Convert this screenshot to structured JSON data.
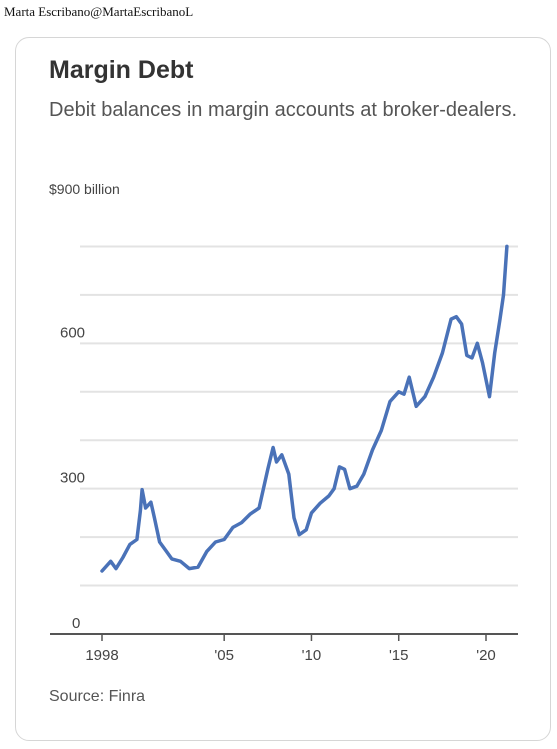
{
  "byline": "Marta Escribano@MartaEscribanoL",
  "chart_data": {
    "type": "line",
    "title": "Margin Debt",
    "subtitle": "Debit balances in margin accounts at broker-dealers.",
    "unit_label": "$900 billion",
    "source": "Source: Finra",
    "ylim": [
      0,
      900
    ],
    "xlim": [
      1998,
      2021.5
    ],
    "y_ticks": [
      {
        "value": 0,
        "label": "0"
      },
      {
        "value": 300,
        "label": "300"
      },
      {
        "value": 600,
        "label": "600"
      }
    ],
    "y_gridlines": [
      100,
      200,
      300,
      400,
      500,
      600,
      700,
      800
    ],
    "x_ticks": [
      {
        "value": 1998,
        "label": "1998"
      },
      {
        "value": 2005,
        "label": "'05"
      },
      {
        "value": 2010,
        "label": "'10"
      },
      {
        "value": 2015,
        "label": "'15"
      },
      {
        "value": 2020,
        "label": "'20"
      }
    ],
    "grid": true,
    "line_color": "#4a72b8",
    "series": [
      {
        "values": [
          {
            "x": 1998.0,
            "y": 130
          },
          {
            "x": 1998.5,
            "y": 150
          },
          {
            "x": 1998.8,
            "y": 135
          },
          {
            "x": 1999.2,
            "y": 158
          },
          {
            "x": 1999.6,
            "y": 185
          },
          {
            "x": 2000.0,
            "y": 195
          },
          {
            "x": 2000.2,
            "y": 255
          },
          {
            "x": 2000.3,
            "y": 298
          },
          {
            "x": 2000.5,
            "y": 260
          },
          {
            "x": 2000.8,
            "y": 272
          },
          {
            "x": 2001.0,
            "y": 240
          },
          {
            "x": 2001.3,
            "y": 190
          },
          {
            "x": 2001.7,
            "y": 170
          },
          {
            "x": 2002.0,
            "y": 155
          },
          {
            "x": 2002.5,
            "y": 150
          },
          {
            "x": 2003.0,
            "y": 135
          },
          {
            "x": 2003.5,
            "y": 138
          },
          {
            "x": 2004.0,
            "y": 170
          },
          {
            "x": 2004.5,
            "y": 190
          },
          {
            "x": 2005.0,
            "y": 195
          },
          {
            "x": 2005.5,
            "y": 220
          },
          {
            "x": 2006.0,
            "y": 230
          },
          {
            "x": 2006.5,
            "y": 248
          },
          {
            "x": 2007.0,
            "y": 260
          },
          {
            "x": 2007.5,
            "y": 340
          },
          {
            "x": 2007.8,
            "y": 385
          },
          {
            "x": 2008.0,
            "y": 355
          },
          {
            "x": 2008.3,
            "y": 370
          },
          {
            "x": 2008.7,
            "y": 330
          },
          {
            "x": 2009.0,
            "y": 240
          },
          {
            "x": 2009.3,
            "y": 205
          },
          {
            "x": 2009.7,
            "y": 215
          },
          {
            "x": 2010.0,
            "y": 250
          },
          {
            "x": 2010.5,
            "y": 270
          },
          {
            "x": 2011.0,
            "y": 285
          },
          {
            "x": 2011.3,
            "y": 300
          },
          {
            "x": 2011.6,
            "y": 345
          },
          {
            "x": 2011.9,
            "y": 340
          },
          {
            "x": 2012.2,
            "y": 300
          },
          {
            "x": 2012.6,
            "y": 305
          },
          {
            "x": 2013.0,
            "y": 330
          },
          {
            "x": 2013.5,
            "y": 380
          },
          {
            "x": 2014.0,
            "y": 420
          },
          {
            "x": 2014.5,
            "y": 480
          },
          {
            "x": 2015.0,
            "y": 500
          },
          {
            "x": 2015.3,
            "y": 495
          },
          {
            "x": 2015.6,
            "y": 530
          },
          {
            "x": 2016.0,
            "y": 470
          },
          {
            "x": 2016.5,
            "y": 490
          },
          {
            "x": 2017.0,
            "y": 530
          },
          {
            "x": 2017.5,
            "y": 580
          },
          {
            "x": 2018.0,
            "y": 650
          },
          {
            "x": 2018.3,
            "y": 655
          },
          {
            "x": 2018.6,
            "y": 640
          },
          {
            "x": 2018.9,
            "y": 575
          },
          {
            "x": 2019.2,
            "y": 570
          },
          {
            "x": 2019.5,
            "y": 600
          },
          {
            "x": 2019.8,
            "y": 560
          },
          {
            "x": 2020.2,
            "y": 490
          },
          {
            "x": 2020.5,
            "y": 580
          },
          {
            "x": 2020.8,
            "y": 650
          },
          {
            "x": 2021.0,
            "y": 700
          },
          {
            "x": 2021.2,
            "y": 800
          }
        ]
      }
    ]
  }
}
